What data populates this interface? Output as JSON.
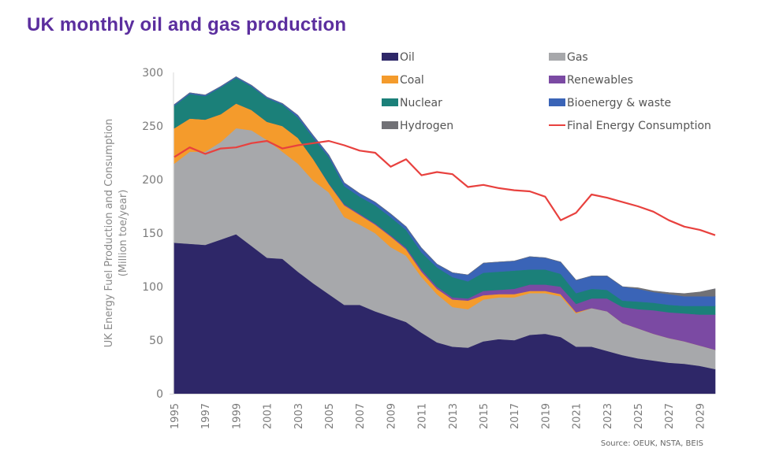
{
  "page": {
    "title": "UK monthly oil and gas production",
    "source": "Source: OEUK, NSTA, BEIS"
  },
  "chart_data": {
    "type": "area",
    "stacked": true,
    "title": "UK monthly oil and gas production",
    "xlabel": "",
    "ylabel": "UK  Energy Fuel Production and Consumption",
    "ylabel_sub": "(Million toe/year)",
    "ylim": [
      0,
      300
    ],
    "yticks": [
      0,
      50,
      100,
      150,
      200,
      250,
      300
    ],
    "xlim": [
      1995,
      2030
    ],
    "xtick_labels": [
      "1995",
      "1997",
      "1999",
      "2001",
      "2003",
      "2005",
      "2007",
      "2009",
      "2011",
      "2013",
      "2015",
      "2017",
      "2019",
      "2021",
      "2023",
      "2025",
      "2027",
      "2029"
    ],
    "grid": false,
    "legend_position": "top-right",
    "x": [
      1995,
      1996,
      1997,
      1998,
      1999,
      2000,
      2001,
      2002,
      2003,
      2004,
      2005,
      2006,
      2007,
      2008,
      2009,
      2010,
      2011,
      2012,
      2013,
      2014,
      2015,
      2016,
      2017,
      2018,
      2019,
      2020,
      2021,
      2022,
      2023,
      2024,
      2025,
      2026,
      2027,
      2028,
      2029,
      2030
    ],
    "series": [
      {
        "name": "Oil",
        "kind": "area",
        "color": "#2e2768",
        "values": [
          141,
          140,
          139,
          144,
          149,
          138,
          127,
          126,
          114,
          103,
          93,
          83,
          83,
          77,
          72,
          67,
          57,
          48,
          44,
          43,
          49,
          51,
          50,
          55,
          56,
          53,
          44,
          44,
          40,
          36,
          33,
          31,
          29,
          28,
          26,
          23
        ]
      },
      {
        "name": "Gas",
        "kind": "area",
        "color": "#a7a8ab",
        "values": [
          74,
          86,
          87,
          91,
          99,
          108,
          110,
          100,
          101,
          96,
          95,
          82,
          75,
          73,
          65,
          62,
          52,
          45,
          37,
          36,
          39,
          39,
          40,
          39,
          38,
          38,
          31,
          36,
          37,
          30,
          28,
          25,
          23,
          21,
          19,
          18
        ]
      },
      {
        "name": "Coal",
        "kind": "area",
        "color": "#f49b2c",
        "values": [
          33,
          31,
          30,
          26,
          23,
          19,
          17,
          24,
          24,
          20,
          8,
          11,
          9,
          8,
          10,
          6,
          5,
          5,
          7,
          8,
          4,
          3,
          3,
          2,
          2,
          2,
          1,
          0,
          0,
          0,
          0,
          0,
          0,
          0,
          0,
          0
        ]
      },
      {
        "name": "Renewables",
        "kind": "area",
        "color": "#7b4aa3",
        "values": [
          0,
          0,
          0,
          0,
          0,
          0,
          0,
          0,
          0,
          0,
          0.5,
          1,
          1,
          1,
          1,
          1.5,
          2,
          2,
          2,
          2,
          4,
          4,
          5,
          6,
          6,
          7,
          8,
          9,
          12,
          15,
          18,
          22,
          24,
          26,
          29,
          33
        ]
      },
      {
        "name": "Nuclear",
        "kind": "area",
        "color": "#1b8079",
        "values": [
          21,
          23,
          22,
          25,
          24,
          22,
          22,
          20,
          19,
          20,
          24.5,
          17,
          16,
          17,
          17,
          16.5,
          16,
          18,
          19,
          16,
          17,
          17,
          17,
          14,
          14,
          12,
          10,
          9,
          8,
          6,
          7,
          7,
          7,
          7,
          8,
          8
        ]
      },
      {
        "name": "Bioenergy & waste",
        "kind": "area",
        "color": "#3a64b7",
        "values": [
          1,
          1,
          1,
          1,
          1,
          1,
          1,
          1,
          2,
          2,
          2,
          3,
          3,
          3,
          3,
          3,
          4,
          3,
          4,
          6,
          9,
          9,
          9,
          12,
          11,
          11,
          12,
          12,
          13,
          13,
          12,
          10,
          10,
          9,
          9,
          9
        ]
      },
      {
        "name": "Hydrogen",
        "kind": "area",
        "color": "#717176",
        "values": [
          0,
          0,
          0,
          0,
          0,
          0,
          0,
          0,
          0,
          0,
          0,
          0,
          0,
          0,
          0,
          0,
          0,
          0,
          0,
          0,
          0,
          0,
          0,
          0,
          0,
          0,
          0,
          0,
          0,
          0,
          1,
          1,
          1.5,
          2.5,
          4,
          7
        ]
      },
      {
        "name": "Final Energy Consumption",
        "kind": "line",
        "color": "#e8413e",
        "values": [
          221,
          230,
          224,
          229,
          230,
          234,
          236,
          229,
          232,
          234,
          236,
          232,
          227,
          225,
          212,
          219,
          204,
          207,
          205,
          193,
          195,
          192,
          190,
          189,
          184,
          162,
          169,
          186,
          183,
          179,
          175,
          170,
          162,
          156,
          153,
          148
        ]
      }
    ],
    "legend": [
      {
        "label": "Oil",
        "color": "#2e2768",
        "kind": "swatch"
      },
      {
        "label": "Gas",
        "color": "#a7a8ab",
        "kind": "swatch"
      },
      {
        "label": "Coal",
        "color": "#f49b2c",
        "kind": "swatch"
      },
      {
        "label": "Renewables",
        "color": "#7b4aa3",
        "kind": "swatch"
      },
      {
        "label": "Nuclear",
        "color": "#1b8079",
        "kind": "swatch"
      },
      {
        "label": "Bioenergy & waste",
        "color": "#3a64b7",
        "kind": "swatch"
      },
      {
        "label": "Hydrogen",
        "color": "#717176",
        "kind": "swatch"
      },
      {
        "label": "Final Energy Consumption",
        "color": "#e8413e",
        "kind": "line"
      }
    ]
  }
}
